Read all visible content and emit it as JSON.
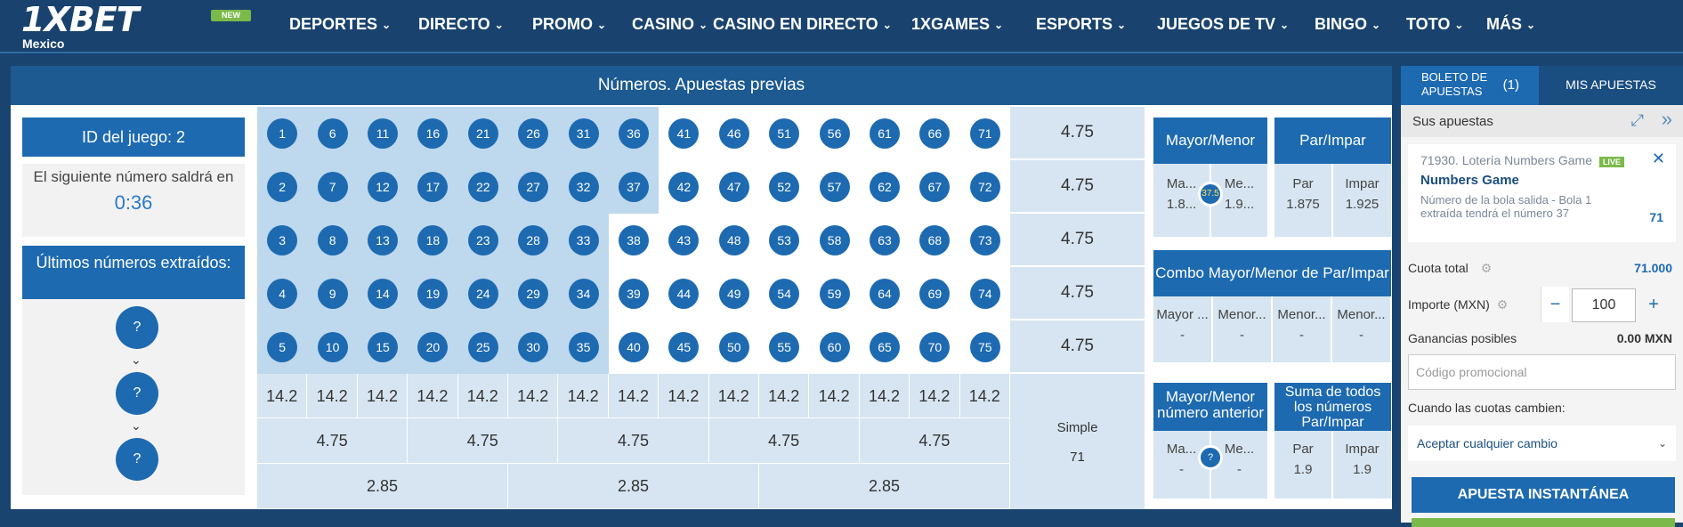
{
  "header": {
    "logo": "1XBET",
    "logo_sub": "Mexico",
    "new_badge": "NEW",
    "nav": [
      "DEPORTES",
      "DIRECTO",
      "PROMO",
      "CASINO",
      "CASINO EN DIRECTO",
      "1XGAMES",
      "ESPORTS",
      "JUEGOS DE TV",
      "BINGO",
      "TOTO",
      "MÁS"
    ]
  },
  "game": {
    "title": "Números. Apuestas previas",
    "id_label": "ID del juego: 2",
    "next_text": "El siguiente número saldrá en",
    "timer": "0:36",
    "last_label": "Últimos números extraídos:",
    "unknown": "?"
  },
  "grid": {
    "columns": [
      [
        1,
        2,
        3,
        4,
        5
      ],
      [
        6,
        7,
        8,
        9,
        10
      ],
      [
        11,
        12,
        13,
        14,
        15
      ],
      [
        16,
        17,
        18,
        19,
        20
      ],
      [
        21,
        22,
        23,
        24,
        25
      ],
      [
        26,
        27,
        28,
        29,
        30
      ],
      [
        31,
        32,
        33,
        34,
        35
      ],
      [
        36,
        37,
        38,
        39,
        40
      ],
      [
        41,
        42,
        43,
        44,
        45
      ],
      [
        46,
        47,
        48,
        49,
        50
      ],
      [
        51,
        52,
        53,
        54,
        55
      ],
      [
        56,
        57,
        58,
        59,
        60
      ],
      [
        61,
        62,
        63,
        64,
        65
      ],
      [
        66,
        67,
        68,
        69,
        70
      ],
      [
        71,
        72,
        73,
        74,
        75
      ]
    ],
    "row_odds": [
      "4.75",
      "4.75",
      "4.75",
      "4.75",
      "4.75"
    ],
    "col_odds": [
      "14.2",
      "14.2",
      "14.2",
      "14.2",
      "14.2",
      "14.2",
      "14.2",
      "14.2",
      "14.2",
      "14.2",
      "14.2",
      "14.2",
      "14.2",
      "14.2",
      "14.2"
    ],
    "triple_odds": [
      "4.75",
      "4.75",
      "4.75",
      "4.75",
      "4.75"
    ],
    "five_odds": [
      "2.85",
      "2.85",
      "2.85"
    ],
    "simple_label": "Simple",
    "simple_value": "71"
  },
  "markets": {
    "mayor_menor": {
      "title": "Mayor/Menor",
      "a": "Ma...",
      "a_val": "1.8...",
      "b": "Me...",
      "b_val": "1.9...",
      "center": "37.5"
    },
    "par_impar": {
      "title": "Par/Impar",
      "a": "Par",
      "a_val": "1.875",
      "b": "Impar",
      "b_val": "1.925"
    },
    "combo": {
      "title": "Combo Mayor/Menor de Par/Impar",
      "labels": [
        "Mayor ...",
        "Menor...",
        "Menor...",
        "Menor..."
      ],
      "values": [
        "-",
        "-",
        "-",
        "-"
      ]
    },
    "prev": {
      "title": "Mayor/Menor número anterior",
      "a": "Ma...",
      "a_val": "-",
      "b": "Me...",
      "b_val": "-",
      "center": "?"
    },
    "suma": {
      "title": "Suma de todos los números Par/Impar",
      "a": "Par",
      "a_val": "1.9",
      "b": "Impar",
      "b_val": "1.9"
    }
  },
  "slip": {
    "tab_active": "BOLETO DE APUESTAS",
    "tab_count": "(1)",
    "tab_other": "MIS APUESTAS",
    "sus": "Sus apuestas",
    "bet_id": "71930. Lotería Numbers Game",
    "live": "LIVE",
    "bet_name": "Numbers Game",
    "bet_desc": "Número de la bola salida - Bola 1 extraída tendrá el número 37",
    "bet_odds": "71",
    "cuota_label": "Cuota total",
    "cuota_val": "71.000",
    "importe_label": "Importe (MXN)",
    "importe_val": "100",
    "ganancias_label": "Ganancias posibles",
    "ganancias_val": "0.00 MXN",
    "promo_placeholder": "Código promocional",
    "cambio_label": "Cuando las cuotas cambien:",
    "cambio_val": "Aceptar cualquier cambio",
    "instant": "APUESTA INSTANTÁNEA"
  }
}
